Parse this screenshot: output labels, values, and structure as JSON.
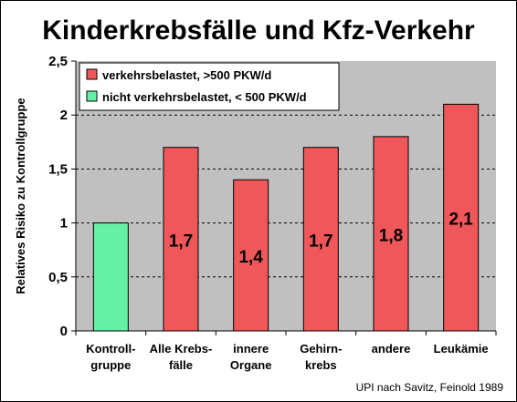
{
  "chart_data": {
    "type": "bar",
    "title": "Kinderkrebsfälle und Kfz-Verkehr",
    "ylabel": "Relatives Risiko zu Kontrollgruppe",
    "xlabel": "",
    "ylim": [
      0,
      2.5
    ],
    "yticks": [
      0,
      0.5,
      1,
      1.5,
      2,
      2.5
    ],
    "ytick_labels": [
      "0",
      "0,5",
      "1",
      "1,5",
      "2",
      "2,5"
    ],
    "grid": "dashed horizontal",
    "legend_position": "top-left",
    "categories": [
      [
        "Kontroll-",
        "gruppe"
      ],
      [
        "Alle Krebs-",
        "fälle"
      ],
      [
        "innere",
        "Organe"
      ],
      [
        "Gehirn-",
        "krebs"
      ],
      [
        "andere"
      ],
      [
        "Leukämie"
      ]
    ],
    "values": [
      1.0,
      1.7,
      1.4,
      1.7,
      1.8,
      2.1
    ],
    "data_labels": [
      "",
      "1,7",
      "1,4",
      "1,7",
      "1,8",
      "2,1"
    ],
    "bar_series": [
      1,
      0,
      0,
      0,
      0,
      0
    ],
    "series": [
      {
        "name": "verkehrsbelastet, >500 PKW/d",
        "color": "#f0575a"
      },
      {
        "name": "nicht verkehrsbelastet, < 500 PKW/d",
        "color": "#66f0a5"
      }
    ],
    "plot_background": "#c0c0c0",
    "source": "UPI  nach Savitz, Feinold 1989"
  }
}
